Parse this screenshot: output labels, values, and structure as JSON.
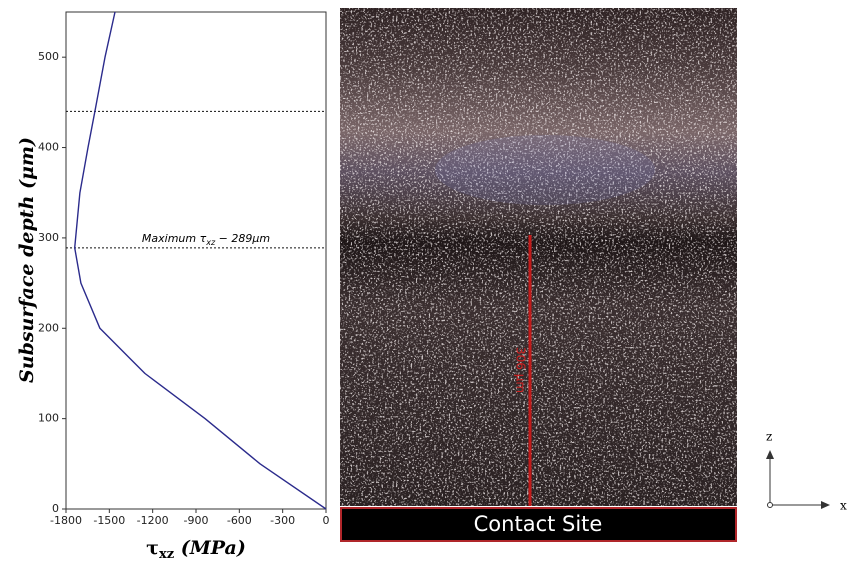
{
  "chart_data": {
    "type": "line",
    "y_label": "Subsurface depth (μm)",
    "x_label": {
      "symbol": "τ",
      "sub": "xz",
      "rest": " (MPa)"
    },
    "annotation": {
      "text": "Maximum τ",
      "sub": "xz",
      "rest": " − 289μm"
    },
    "hlines": [
      289,
      440
    ],
    "xlim": [
      -1800,
      0
    ],
    "ylim": [
      0,
      550
    ],
    "xticks": [
      -1800,
      -1500,
      -1200,
      -900,
      -600,
      -300,
      0
    ],
    "yticks": [
      0,
      100,
      200,
      300,
      400,
      500
    ],
    "series": [
      {
        "color": "#2b2b8c",
        "x": [
          0,
          -457,
          -838,
          -1253,
          -1565,
          -1697,
          -1740,
          -1704,
          -1648,
          -1600,
          -1530,
          -1461
        ],
        "values": [
          0,
          50,
          100,
          150,
          200,
          250,
          289,
          350,
          400,
          440,
          500,
          550
        ]
      }
    ]
  },
  "image": {
    "measure_label": "306 μm",
    "caption": "Contact Site"
  },
  "axes_indicator": {
    "z": "z",
    "x": "x"
  }
}
